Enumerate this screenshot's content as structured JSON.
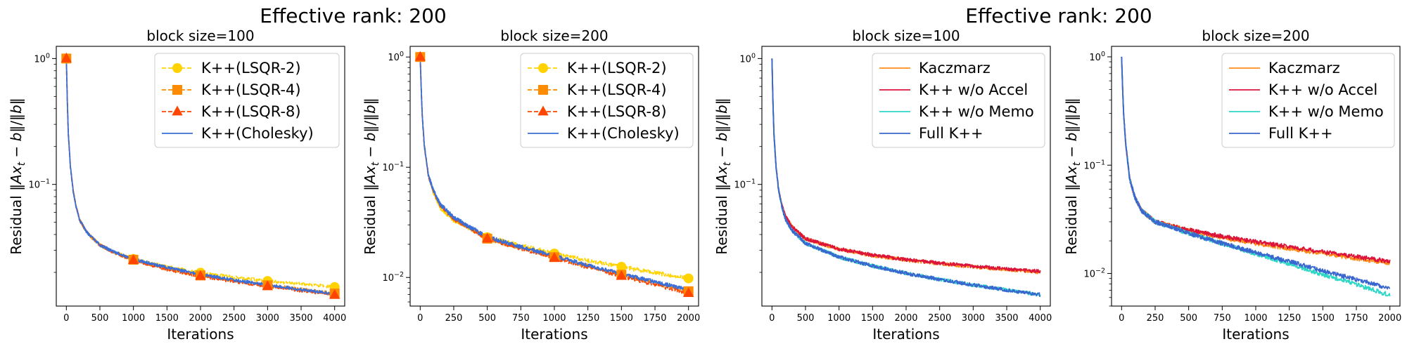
{
  "figure": {
    "suptitles": [
      "Effective rank: 200",
      "Effective rank: 200"
    ]
  },
  "colors": {
    "lsqr2": "#FFD200",
    "lsqr4": "#FF8C00",
    "lsqr8": "#FF4500",
    "cholesky": "#3A6FD8",
    "kaczmarz": "#FF8C1A",
    "noaccel": "#DC143C",
    "nomemo": "#2ED6C6",
    "full": "#3A66D0"
  },
  "chart_data": [
    {
      "type": "line",
      "title": "block size=100",
      "xlabel": "Iterations",
      "ylabel": "Residual ‖Ax_t − b‖/‖b‖",
      "yscale": "log",
      "xlim": [
        -150,
        4150
      ],
      "ylim": [
        0.0108,
        1.25
      ],
      "xticks": [
        0,
        500,
        1000,
        1500,
        2000,
        2500,
        3000,
        3500,
        4000
      ],
      "yticks": [
        {
          "value": 1,
          "base": "10",
          "exp": "0"
        },
        {
          "value": 0.1,
          "base": "10",
          "exp": "−1"
        }
      ],
      "legend_position": "top-right",
      "series": [
        {
          "name": "K++(LSQR-2)",
          "color_key": "lsqr2",
          "dash": "dashed",
          "marker": "circle",
          "noise": 0.012,
          "x": [
            0,
            15,
            30,
            60,
            100,
            150,
            200,
            300,
            400,
            500,
            700,
            1000,
            1500,
            2000,
            2500,
            3000,
            3500,
            4000
          ],
          "y": [
            1.0,
            0.45,
            0.25,
            0.14,
            0.09,
            0.065,
            0.052,
            0.042,
            0.037,
            0.033,
            0.029,
            0.0256,
            0.0222,
            0.0199,
            0.0183,
            0.0171,
            0.0162,
            0.0153
          ]
        },
        {
          "name": "K++(LSQR-4)",
          "color_key": "lsqr4",
          "dash": "dashed",
          "marker": "square",
          "noise": 0.012,
          "x": [
            0,
            15,
            30,
            60,
            100,
            150,
            200,
            300,
            400,
            500,
            700,
            1000,
            1500,
            2000,
            2500,
            3000,
            3500,
            4000
          ],
          "y": [
            1.0,
            0.45,
            0.25,
            0.14,
            0.09,
            0.065,
            0.052,
            0.042,
            0.037,
            0.033,
            0.029,
            0.0252,
            0.0213,
            0.0189,
            0.0172,
            0.0158,
            0.0147,
            0.0136
          ]
        },
        {
          "name": "K++(LSQR-8)",
          "color_key": "lsqr8",
          "dash": "dashed",
          "marker": "triangle",
          "noise": 0.012,
          "x": [
            0,
            15,
            30,
            60,
            100,
            150,
            200,
            300,
            400,
            500,
            700,
            1000,
            1500,
            2000,
            2500,
            3000,
            3500,
            4000
          ],
          "y": [
            1.0,
            0.45,
            0.25,
            0.14,
            0.09,
            0.065,
            0.052,
            0.042,
            0.037,
            0.033,
            0.029,
            0.025,
            0.0211,
            0.0187,
            0.0169,
            0.0155,
            0.0143,
            0.0132
          ]
        },
        {
          "name": "K++(Cholesky)",
          "color_key": "cholesky",
          "dash": "solid",
          "marker": "none",
          "noise": 0.012,
          "x": [
            0,
            15,
            30,
            60,
            100,
            150,
            200,
            300,
            400,
            500,
            700,
            1000,
            1500,
            2000,
            2500,
            3000,
            3500,
            4000
          ],
          "y": [
            1.0,
            0.45,
            0.25,
            0.14,
            0.09,
            0.065,
            0.052,
            0.042,
            0.037,
            0.033,
            0.0292,
            0.0255,
            0.0218,
            0.0193,
            0.0174,
            0.0159,
            0.0146,
            0.0135
          ]
        }
      ]
    },
    {
      "type": "line",
      "title": "block size=200",
      "xlabel": "Iterations",
      "ylabel": "Residual ‖Ax_t − b‖/‖b‖",
      "yscale": "log",
      "xlim": [
        -75,
        2075
      ],
      "ylim": [
        0.0055,
        1.25
      ],
      "xticks": [
        0,
        250,
        500,
        750,
        1000,
        1250,
        1500,
        1750,
        2000
      ],
      "yticks": [
        {
          "value": 1,
          "base": "10",
          "exp": "0"
        },
        {
          "value": 0.1,
          "base": "10",
          "exp": "−1"
        },
        {
          "value": 0.01,
          "base": "10",
          "exp": "−2"
        }
      ],
      "legend_position": "top-right",
      "series": [
        {
          "name": "K++(LSQR-2)",
          "color_key": "lsqr2",
          "dash": "dashed",
          "marker": "circle",
          "noise": 0.018,
          "x": [
            0,
            8,
            15,
            30,
            60,
            100,
            150,
            250,
            500,
            750,
            1000,
            1250,
            1500,
            1750,
            2000
          ],
          "y": [
            1.0,
            0.5,
            0.3,
            0.16,
            0.085,
            0.058,
            0.043,
            0.033,
            0.0232,
            0.0195,
            0.0165,
            0.0143,
            0.0125,
            0.011,
            0.0098
          ]
        },
        {
          "name": "K++(LSQR-4)",
          "color_key": "lsqr4",
          "dash": "dashed",
          "marker": "square",
          "noise": 0.018,
          "x": [
            0,
            8,
            15,
            30,
            60,
            100,
            150,
            250,
            500,
            750,
            1000,
            1250,
            1500,
            1750,
            2000
          ],
          "y": [
            1.0,
            0.5,
            0.3,
            0.16,
            0.085,
            0.06,
            0.045,
            0.034,
            0.0225,
            0.0185,
            0.0153,
            0.0127,
            0.0106,
            0.0089,
            0.0075
          ]
        },
        {
          "name": "K++(LSQR-8)",
          "color_key": "lsqr8",
          "dash": "dashed",
          "marker": "triangle",
          "noise": 0.018,
          "x": [
            0,
            8,
            15,
            30,
            60,
            100,
            150,
            250,
            500,
            750,
            1000,
            1250,
            1500,
            1750,
            2000
          ],
          "y": [
            1.0,
            0.5,
            0.3,
            0.16,
            0.085,
            0.06,
            0.045,
            0.034,
            0.0225,
            0.0183,
            0.015,
            0.0124,
            0.0103,
            0.0086,
            0.0072
          ]
        },
        {
          "name": "K++(Cholesky)",
          "color_key": "cholesky",
          "dash": "solid",
          "marker": "none",
          "noise": 0.018,
          "x": [
            0,
            8,
            15,
            30,
            60,
            100,
            150,
            250,
            500,
            750,
            1000,
            1250,
            1500,
            1750,
            2000
          ],
          "y": [
            1.0,
            0.5,
            0.3,
            0.16,
            0.085,
            0.061,
            0.046,
            0.035,
            0.0232,
            0.019,
            0.0156,
            0.0129,
            0.0108,
            0.0091,
            0.0077
          ]
        }
      ]
    },
    {
      "type": "line",
      "title": "block size=100",
      "xlabel": "Iterations",
      "ylabel": "Residual ‖Ax_t − b‖/‖b‖",
      "yscale": "log",
      "xlim": [
        -150,
        4150
      ],
      "ylim": [
        0.0108,
        1.25
      ],
      "xticks": [
        0,
        500,
        1000,
        1500,
        2000,
        2500,
        3000,
        3500,
        4000
      ],
      "yticks": [
        {
          "value": 1,
          "base": "10",
          "exp": "0"
        },
        {
          "value": 0.1,
          "base": "10",
          "exp": "−1"
        }
      ],
      "legend_position": "top-right",
      "series": [
        {
          "name": "Kaczmarz",
          "color_key": "kaczmarz",
          "dash": "solid",
          "marker": "none",
          "noise": 0.014,
          "x": [
            0,
            15,
            30,
            60,
            100,
            150,
            200,
            300,
            500,
            1000,
            1500,
            2000,
            2500,
            3000,
            3500,
            4000
          ],
          "y": [
            1.0,
            0.45,
            0.25,
            0.14,
            0.09,
            0.068,
            0.056,
            0.046,
            0.037,
            0.0305,
            0.0272,
            0.0251,
            0.0235,
            0.0222,
            0.0211,
            0.0201
          ]
        },
        {
          "name": "K++ w/o Accel",
          "color_key": "noaccel",
          "dash": "solid",
          "marker": "none",
          "noise": 0.014,
          "x": [
            0,
            15,
            30,
            60,
            100,
            150,
            200,
            300,
            500,
            1000,
            1500,
            2000,
            2500,
            3000,
            3500,
            4000
          ],
          "y": [
            1.0,
            0.45,
            0.25,
            0.14,
            0.09,
            0.068,
            0.056,
            0.046,
            0.037,
            0.0307,
            0.0275,
            0.0253,
            0.0237,
            0.0224,
            0.0213,
            0.0203
          ]
        },
        {
          "name": "K++ w/o Memo",
          "color_key": "nomemo",
          "dash": "solid",
          "marker": "none",
          "noise": 0.014,
          "x": [
            0,
            15,
            30,
            60,
            100,
            150,
            200,
            300,
            500,
            1000,
            1500,
            2000,
            2500,
            3000,
            3500,
            4000
          ],
          "y": [
            1.0,
            0.45,
            0.25,
            0.14,
            0.09,
            0.066,
            0.053,
            0.043,
            0.034,
            0.0265,
            0.0225,
            0.0197,
            0.0176,
            0.0159,
            0.0145,
            0.0133
          ]
        },
        {
          "name": "Full K++",
          "color_key": "full",
          "dash": "solid",
          "marker": "none",
          "noise": 0.014,
          "x": [
            0,
            15,
            30,
            60,
            100,
            150,
            200,
            300,
            500,
            1000,
            1500,
            2000,
            2500,
            3000,
            3500,
            4000
          ],
          "y": [
            1.0,
            0.45,
            0.25,
            0.14,
            0.09,
            0.066,
            0.053,
            0.043,
            0.034,
            0.0265,
            0.0225,
            0.0197,
            0.0176,
            0.0159,
            0.0145,
            0.0133
          ]
        }
      ]
    },
    {
      "type": "line",
      "title": "block size=200",
      "xlabel": "Iterations",
      "ylabel": "Residual ‖Ax_t − b‖/‖b‖",
      "yscale": "log",
      "xlim": [
        -75,
        2075
      ],
      "ylim": [
        0.005,
        1.25
      ],
      "xticks": [
        0,
        250,
        500,
        750,
        1000,
        1250,
        1500,
        1750,
        2000
      ],
      "yticks": [
        {
          "value": 1,
          "base": "10",
          "exp": "0"
        },
        {
          "value": 0.1,
          "base": "10",
          "exp": "−1"
        },
        {
          "value": 0.01,
          "base": "10",
          "exp": "−2"
        }
      ],
      "legend_position": "top-right",
      "series": [
        {
          "name": "Kaczmarz",
          "color_key": "kaczmarz",
          "dash": "solid",
          "marker": "none",
          "noise": 0.02,
          "x": [
            0,
            8,
            15,
            30,
            60,
            100,
            150,
            250,
            500,
            750,
            1000,
            1250,
            1500,
            1750,
            2000
          ],
          "y": [
            1.0,
            0.5,
            0.3,
            0.16,
            0.075,
            0.05,
            0.038,
            0.03,
            0.025,
            0.0215,
            0.019,
            0.017,
            0.0153,
            0.0138,
            0.0123
          ]
        },
        {
          "name": "K++ w/o Accel",
          "color_key": "noaccel",
          "dash": "solid",
          "marker": "none",
          "noise": 0.02,
          "x": [
            0,
            8,
            15,
            30,
            60,
            100,
            150,
            250,
            500,
            750,
            1000,
            1250,
            1500,
            1750,
            2000
          ],
          "y": [
            1.0,
            0.5,
            0.3,
            0.16,
            0.075,
            0.05,
            0.038,
            0.03,
            0.0252,
            0.022,
            0.0196,
            0.0176,
            0.0158,
            0.0143,
            0.0129
          ]
        },
        {
          "name": "K++ w/o Memo",
          "color_key": "nomemo",
          "dash": "solid",
          "marker": "none",
          "noise": 0.02,
          "x": [
            0,
            8,
            15,
            30,
            60,
            100,
            150,
            250,
            500,
            750,
            1000,
            1250,
            1500,
            1750,
            2000
          ],
          "y": [
            1.0,
            0.5,
            0.3,
            0.16,
            0.075,
            0.05,
            0.038,
            0.03,
            0.0235,
            0.0188,
            0.0152,
            0.0123,
            0.0098,
            0.0079,
            0.0063
          ]
        },
        {
          "name": "Full K++",
          "color_key": "full",
          "dash": "solid",
          "marker": "none",
          "noise": 0.02,
          "x": [
            0,
            8,
            15,
            30,
            60,
            100,
            150,
            250,
            500,
            750,
            1000,
            1250,
            1500,
            1750,
            2000
          ],
          "y": [
            1.0,
            0.5,
            0.3,
            0.16,
            0.075,
            0.05,
            0.038,
            0.03,
            0.0235,
            0.019,
            0.0156,
            0.0129,
            0.0106,
            0.0088,
            0.0073
          ]
        }
      ]
    }
  ]
}
